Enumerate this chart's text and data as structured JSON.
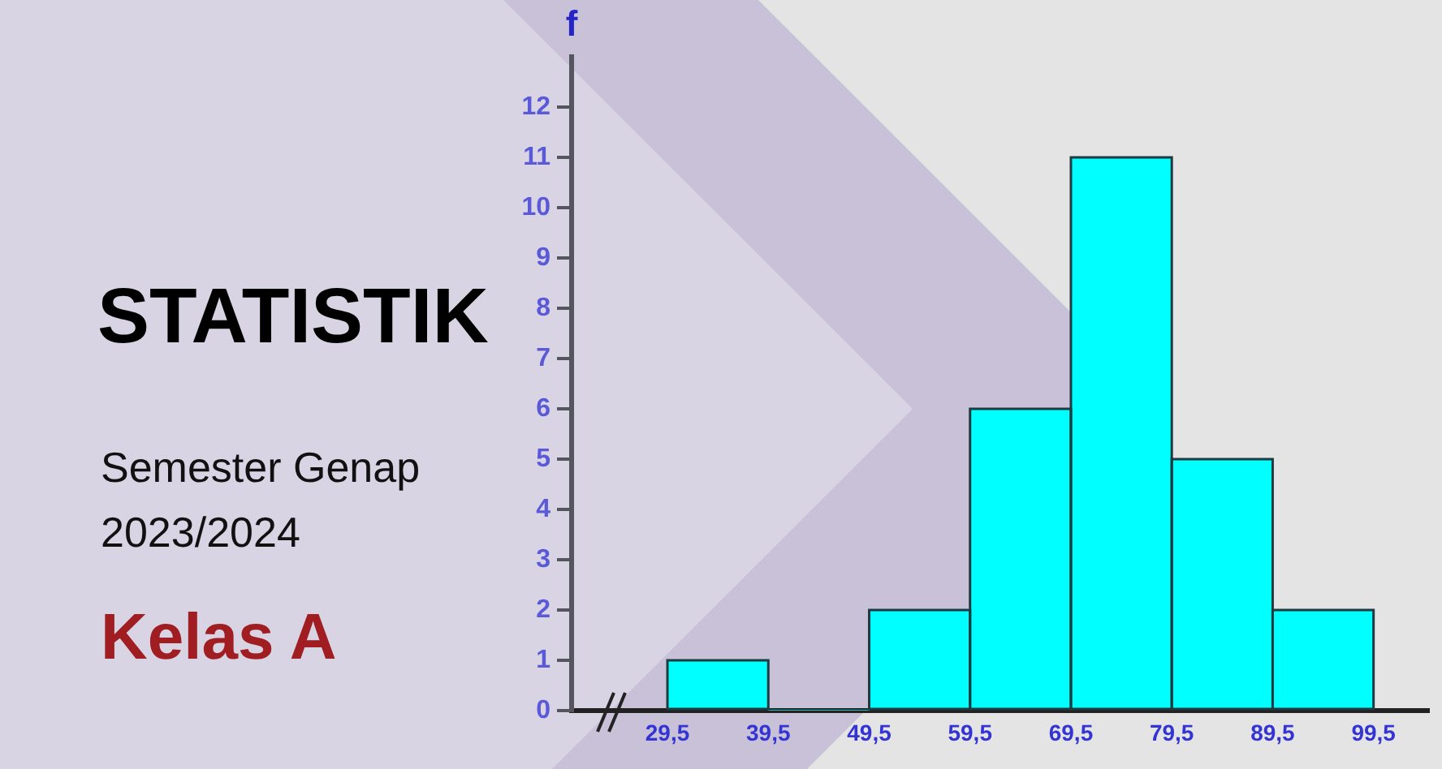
{
  "chart_data": {
    "type": "histogram",
    "title": "STATISTIK",
    "subtitle": "Semester Genap 2023/2024",
    "annotations": [
      "Kelas A"
    ],
    "ylabel": "f",
    "bins": [
      29.5,
      39.5,
      49.5,
      59.5,
      69.5,
      79.5,
      89.5,
      99.5
    ],
    "values": [
      1,
      0,
      2,
      6,
      11,
      5,
      2
    ],
    "color": "#00ffff",
    "xlim": [
      20,
      105
    ],
    "xticks": [
      {
        "value": 29.5,
        "label": "29,5"
      },
      {
        "value": 39.5,
        "label": "39,5"
      },
      {
        "value": 49.5,
        "label": "49,5"
      },
      {
        "value": 59.5,
        "label": "59,5"
      },
      {
        "value": 69.5,
        "label": "69,5"
      },
      {
        "value": 79.5,
        "label": "79,5"
      },
      {
        "value": 89.5,
        "label": "89,5"
      },
      {
        "value": 99.5,
        "label": "99,5"
      }
    ],
    "ylim": [
      0,
      13
    ],
    "yticks": [
      0,
      1,
      2,
      3,
      4,
      5,
      6,
      7,
      8,
      9,
      10,
      11,
      12
    ],
    "grid": false
  }
}
